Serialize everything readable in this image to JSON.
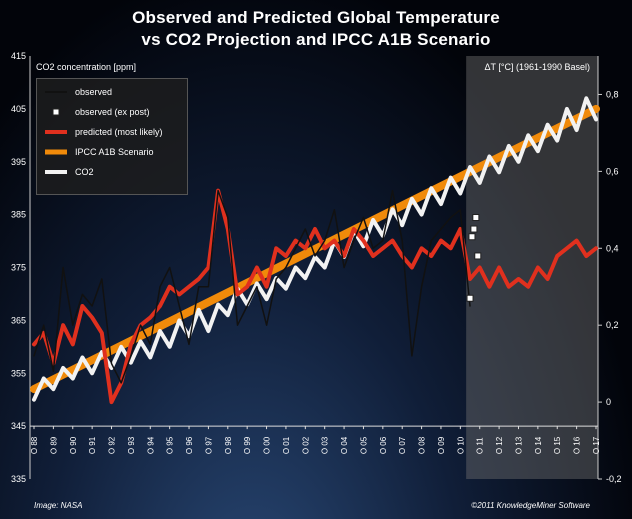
{
  "title_line1": "Observed and Predicted Global Temperature",
  "title_line2": "vs CO2 Projection  and IPCC A1B Scenario",
  "left_axis_label": "CO2 concentration [ppm]",
  "right_axis_label": "ΔT [°C] (1961-1990 Basel)",
  "credit_left": "Image: NASA",
  "credit_right": "©2011 KnowledgeMiner Software",
  "legend": [
    {
      "label": "observed",
      "color": "#111111"
    },
    {
      "label": "observed (ex post)",
      "color": "#ffffff"
    },
    {
      "label": "predicted (most likely)",
      "color": "#e0301e"
    },
    {
      "label": "IPCC A1B Scenario",
      "color": "#f08a0a"
    },
    {
      "label": "CO2",
      "color": "#f2f2f2"
    }
  ],
  "chart_data": {
    "type": "line",
    "x_tick_labels": [
      "88",
      "89",
      "90",
      "91",
      "92",
      "93",
      "94",
      "95",
      "96",
      "97",
      "98",
      "99",
      "00",
      "01",
      "02",
      "03",
      "04",
      "05",
      "06",
      "07",
      "08",
      "09",
      "10",
      "11",
      "12",
      "13",
      "14",
      "15",
      "16",
      "17"
    ],
    "x_range": [
      1988,
      2017
    ],
    "left_axis": {
      "ticks": [
        335,
        345,
        355,
        365,
        375,
        385,
        395,
        405,
        415
      ],
      "range": [
        335,
        415
      ]
    },
    "right_axis": {
      "ticks": [
        "-0,2",
        "0",
        "0,2",
        "0,4",
        "0,6",
        "0,8"
      ],
      "values": [
        -0.2,
        0,
        0.2,
        0.4,
        0.6,
        0.8
      ],
      "range": [
        -0.2,
        0.9
      ]
    },
    "series": [
      {
        "name": "CO2",
        "axis": "left",
        "x": [
          1988,
          1988.5,
          1989,
          1989.5,
          1990,
          1990.5,
          1991,
          1991.5,
          1992,
          1992.5,
          1993,
          1993.5,
          1994,
          1994.5,
          1995,
          1995.5,
          1996,
          1996.5,
          1997,
          1997.5,
          1998,
          1998.5,
          1999,
          1999.5,
          2000,
          2000.5,
          2001,
          2001.5,
          2002,
          2002.5,
          2003,
          2003.5,
          2004,
          2004.5,
          2005,
          2005.5,
          2006,
          2006.5,
          2007,
          2007.5,
          2008,
          2008.5,
          2009,
          2009.5,
          2010,
          2010.5,
          2011,
          2011.5,
          2012,
          2012.5,
          2013,
          2013.5,
          2014,
          2014.5,
          2015,
          2015.5,
          2016,
          2016.5,
          2017
        ],
        "values": [
          350,
          354,
          352,
          356,
          354,
          358,
          355,
          359,
          356,
          360,
          357,
          361,
          358,
          363,
          360,
          365,
          362,
          367,
          363,
          368,
          366,
          371,
          368,
          372,
          369,
          373,
          371,
          375,
          373,
          377,
          375,
          380,
          377,
          382,
          379,
          384,
          381,
          386,
          383,
          388,
          385,
          390,
          387,
          392,
          389,
          394,
          391,
          396,
          393,
          398,
          395,
          400,
          397,
          402,
          399,
          405,
          401,
          407,
          403
        ]
      },
      {
        "name": "IPCC A1B Scenario",
        "axis": "left",
        "x": [
          1988,
          2017
        ],
        "values": [
          352,
          405
        ]
      },
      {
        "name": "observed",
        "axis": "right",
        "x": [
          1988,
          1988.5,
          1989,
          1989.5,
          1990,
          1990.5,
          1991,
          1991.5,
          1992,
          1992.5,
          1993,
          1993.5,
          1994,
          1994.5,
          1995,
          1995.5,
          1996,
          1996.5,
          1997,
          1997.5,
          1998,
          1998.5,
          1999,
          1999.5,
          2000,
          2000.5,
          2001,
          2001.5,
          2002,
          2002.5,
          2003,
          2003.5,
          2004,
          2004.5,
          2005,
          2005.5,
          2006,
          2006.5,
          2007,
          2007.5,
          2008,
          2008.5,
          2009,
          2009.5,
          2010,
          2010.5
        ],
        "values": [
          0.12,
          0.2,
          0.08,
          0.35,
          0.2,
          0.28,
          0.25,
          0.32,
          0.1,
          0.05,
          0.12,
          0.2,
          0.15,
          0.3,
          0.35,
          0.25,
          0.15,
          0.3,
          0.3,
          0.55,
          0.48,
          0.2,
          0.25,
          0.3,
          0.2,
          0.32,
          0.35,
          0.4,
          0.45,
          0.38,
          0.42,
          0.5,
          0.35,
          0.42,
          0.48,
          0.4,
          0.42,
          0.55,
          0.42,
          0.12,
          0.3,
          0.42,
          0.45,
          0.48,
          0.5,
          0.25
        ]
      },
      {
        "name": "observed (ex post)",
        "axis": "right",
        "x": [
          2010.5,
          2010.6,
          2010.7,
          2010.8,
          2010.9
        ],
        "values": [
          0.27,
          0.43,
          0.45,
          0.48,
          0.38
        ]
      },
      {
        "name": "predicted (most likely)",
        "axis": "right",
        "x": [
          1988,
          1988.5,
          1989,
          1989.5,
          1990,
          1990.5,
          1991,
          1991.5,
          1992,
          1992.5,
          1993,
          1993.5,
          1994,
          1994.5,
          1995,
          1995.5,
          1996,
          1996.5,
          1997,
          1997.5,
          1998,
          1998.5,
          1999,
          1999.5,
          2000,
          2000.5,
          2001,
          2001.5,
          2002,
          2002.5,
          2003,
          2003.5,
          2004,
          2004.5,
          2005,
          2005.5,
          2006,
          2006.5,
          2007,
          2007.5,
          2008,
          2008.5,
          2009,
          2009.5,
          2010,
          2010.5,
          2011,
          2011.5,
          2012,
          2012.5,
          2013,
          2013.5,
          2014,
          2014.5,
          2015,
          2015.5,
          2016,
          2016.5,
          2017
        ],
        "values": [
          0.15,
          0.18,
          0.1,
          0.2,
          0.15,
          0.25,
          0.22,
          0.18,
          0.0,
          0.05,
          0.15,
          0.2,
          0.22,
          0.25,
          0.3,
          0.28,
          0.3,
          0.32,
          0.35,
          0.55,
          0.45,
          0.28,
          0.3,
          0.35,
          0.3,
          0.4,
          0.38,
          0.42,
          0.4,
          0.45,
          0.4,
          0.42,
          0.38,
          0.45,
          0.42,
          0.38,
          0.4,
          0.42,
          0.38,
          0.35,
          0.4,
          0.38,
          0.42,
          0.4,
          0.45,
          0.32,
          0.35,
          0.3,
          0.35,
          0.3,
          0.32,
          0.3,
          0.35,
          0.32,
          0.38,
          0.4,
          0.42,
          0.38,
          0.4
        ]
      }
    ],
    "forecast_shade_from": 2010.3
  }
}
